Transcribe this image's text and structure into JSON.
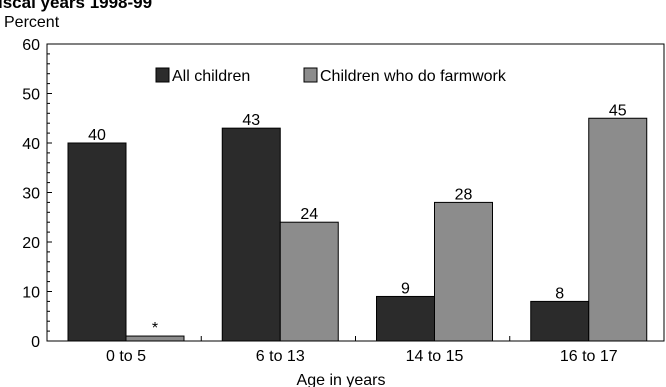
{
  "chart_data": {
    "type": "bar",
    "title": "iscal years 1998-99",
    "ylabel": "Percent",
    "xlabel": "Age in years",
    "ylim": [
      0,
      60
    ],
    "yticks": [
      0,
      10,
      20,
      30,
      40,
      50,
      60
    ],
    "categories": [
      "0 to 5",
      "6 to 13",
      "14 to 15",
      "16 to 17"
    ],
    "legend_position": "top-center",
    "grid": false,
    "series": [
      {
        "name": "All children",
        "color": "#2b2b2b",
        "values": [
          40,
          43,
          9,
          8
        ],
        "labels": [
          "40",
          "43",
          "9",
          "8"
        ]
      },
      {
        "name": "Children who do farmwork",
        "color": "#8c8c8c",
        "values": [
          1,
          24,
          28,
          45
        ],
        "labels": [
          "*",
          "24",
          "28",
          "45"
        ]
      }
    ]
  }
}
